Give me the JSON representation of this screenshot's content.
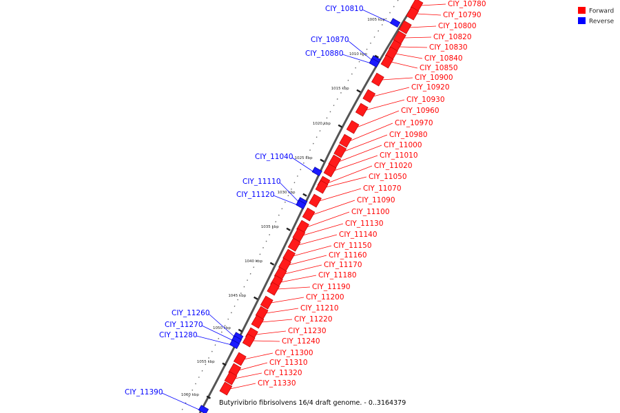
{
  "legend": {
    "forward_label": "Forward",
    "reverse_label": "Reverse",
    "forward_color": "#ff0000",
    "reverse_color": "#0000ff"
  },
  "footer": "Butyrivibrio fibrisolvens 16/4 draft genome. - 0..3164379",
  "ticks": [
    "1005 kbp",
    "1010 kbp",
    "1015 kbp",
    "1020 kbp",
    "1025 kbp",
    "1030 kbp",
    "1035 kbp",
    "1040 kbp",
    "1045 kbp",
    "1050 kbp",
    "1055 kbp",
    "1060 kbp"
  ],
  "forward_genes": [
    "CIY_10780",
    "CIY_10790",
    "CIY_10800",
    "CIY_10820",
    "CIY_10830",
    "CIY_10840",
    "CIY_10850",
    "CIY_10900",
    "CIY_10920",
    "CIY_10930",
    "CIY_10960",
    "CIY_10970",
    "CIY_10980",
    "CIY_11000",
    "CIY_11010",
    "CIY_11020",
    "CIY_11050",
    "CIY_11070",
    "CIY_11090",
    "CIY_11100",
    "CIY_11130",
    "CIY_11140",
    "CIY_11150",
    "CIY_11160",
    "CIY_11170",
    "CIY_11180",
    "CIY_11190",
    "CIY_11200",
    "CIY_11210",
    "CIY_11220",
    "CIY_11230",
    "CIY_11240",
    "CIY_11300",
    "CIY_11310",
    "CIY_11320",
    "CIY_11330"
  ],
  "reverse_genes": [
    "CIY_10810",
    "CIY_10870",
    "CIY_10880",
    "CIY_11040",
    "CIY_11110",
    "CIY_11120",
    "CIY_11260",
    "CIY_11270",
    "CIY_11280",
    "CIY_11390"
  ]
}
